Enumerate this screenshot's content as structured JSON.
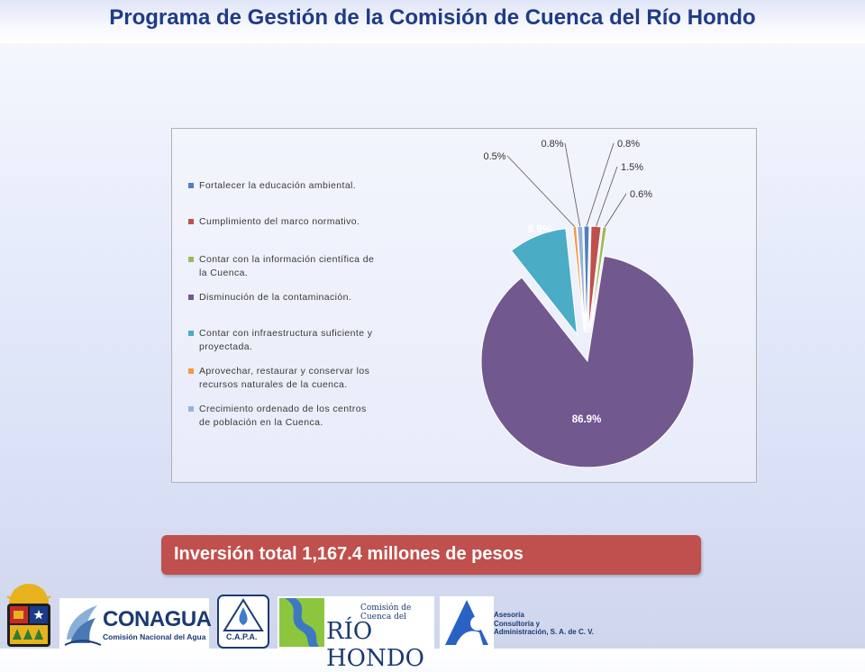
{
  "page": {
    "title": "Programa de Gestión de la Comisión de Cuenca del Río Hondo"
  },
  "banner": {
    "text": "Inversión total 1,167.4 millones de pesos"
  },
  "chart_data": {
    "type": "pie",
    "title": "",
    "legend_position": "left",
    "slices": [
      {
        "label": "Fortalecer la educación ambiental.",
        "value": 0.8,
        "label_text": "0.8%",
        "color": "#4f81bd"
      },
      {
        "label": "Cumplimiento del marco normativo.",
        "value": 1.5,
        "label_text": "1.5%",
        "color": "#c0504d"
      },
      {
        "label": "Contar con la información científica de la Cuenca.",
        "value": 0.6,
        "label_text": "0.6%",
        "color": "#9bbb59"
      },
      {
        "label": "Disminución de la contaminación.",
        "value": 86.9,
        "label_text": "86.9%",
        "color": "#71588f"
      },
      {
        "label": "Contar con infraestructura suficiente y proyectada.",
        "value": 8.9,
        "label_text": "8.9%",
        "color": "#4bacc6"
      },
      {
        "label": "Aprovechar, restaurar y conservar los recursos naturales de la cuenca.",
        "value": 0.5,
        "label_text": "0.5%",
        "color": "#f79646"
      },
      {
        "label": "Crecimiento ordenado de los centros de población en la Cuenca.",
        "value": 0.8,
        "label_text": "0.8%",
        "color": "#95b3d7"
      }
    ]
  },
  "logos": {
    "conagua": {
      "name": "CONAGUA",
      "subtitle": "Comisión Nacional del Agua"
    },
    "capa": {
      "name": "C.A.P.A."
    },
    "rio_hondo": {
      "top_text": "Comisión de Cuenca del",
      "name": "RÍO HONDO"
    },
    "asesoria": {
      "lines": [
        "Asesoría",
        "Consultoría y",
        "Administración, S. A. de C. V."
      ]
    }
  }
}
